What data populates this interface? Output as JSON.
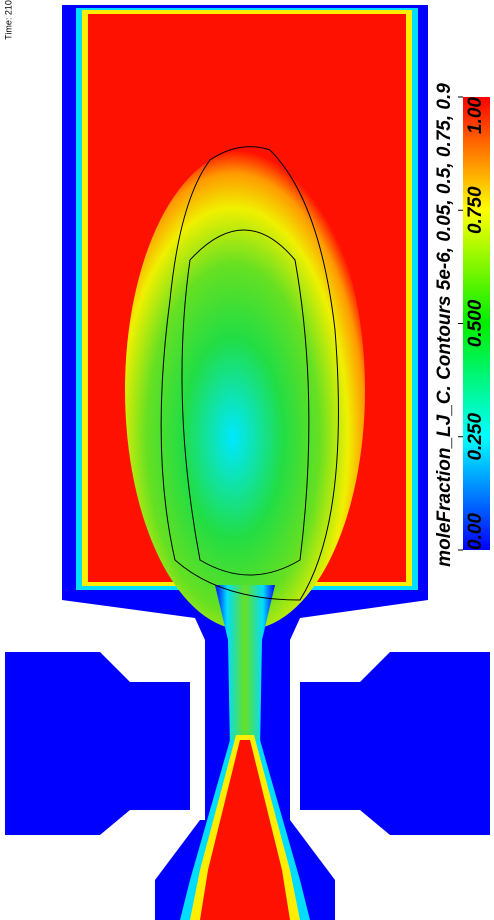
{
  "time_label": "Time: 210",
  "colorbar": {
    "title": "moleFraction_LJ_C.  Contours 5e-6, 0.05, 0.5, 0.75, 0.9",
    "range": [
      0,
      1
    ],
    "ticks": [
      {
        "value": 0,
        "label": "0.00"
      },
      {
        "value": 0.25,
        "label": "0.250"
      },
      {
        "value": 0.5,
        "label": "0.500"
      },
      {
        "value": 0.75,
        "label": "0.750"
      },
      {
        "value": 1,
        "label": "1.00"
      }
    ]
  }
}
